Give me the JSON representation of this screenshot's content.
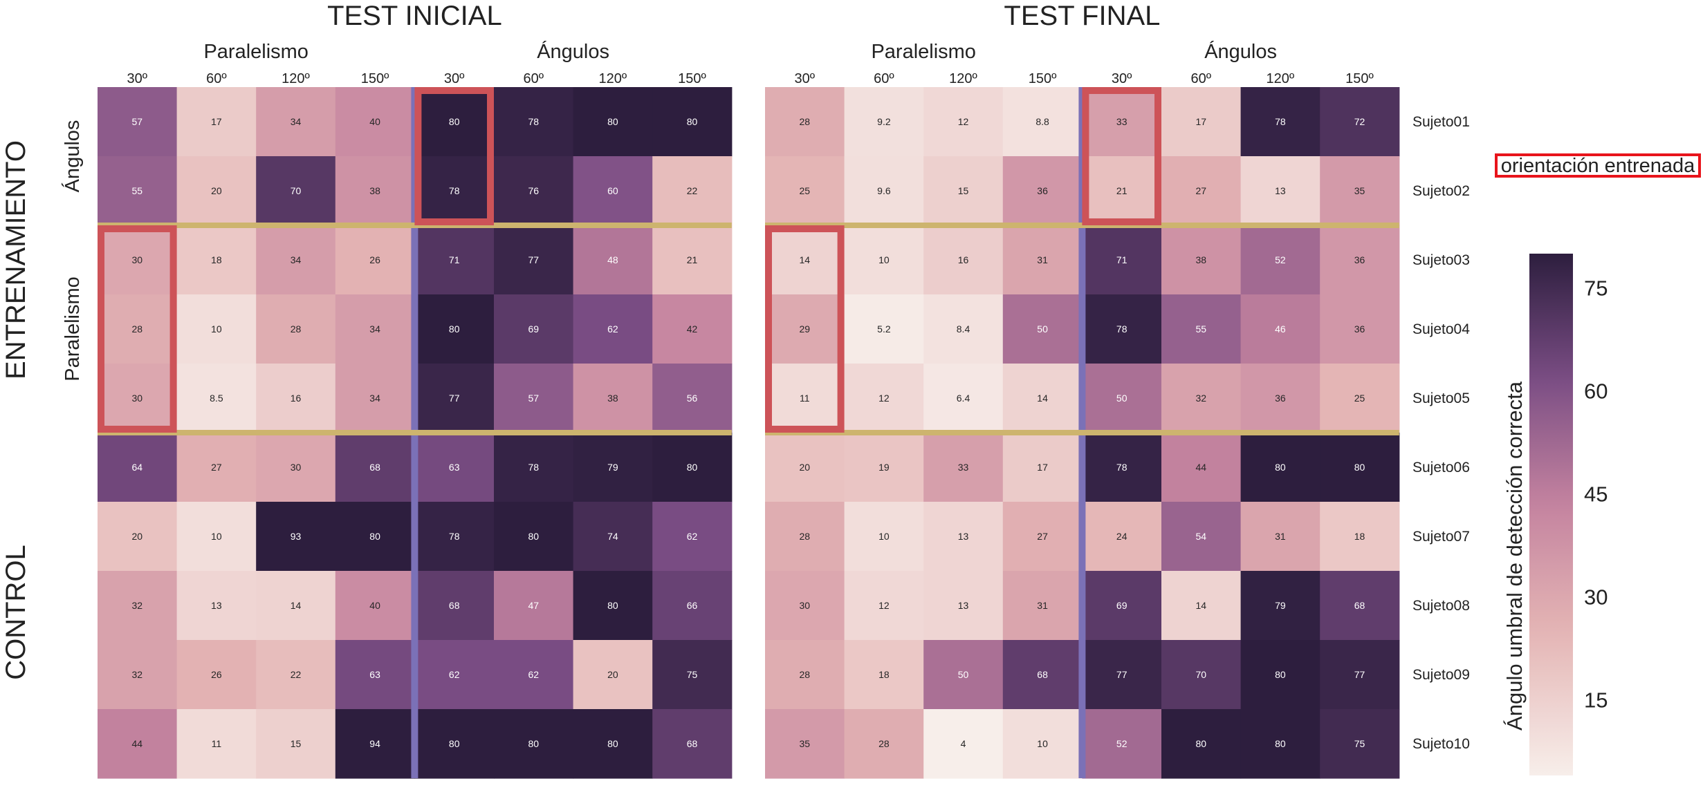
{
  "chart_data": {
    "type": "heatmap",
    "panels": [
      {
        "title": "TEST INICIAL",
        "groups": [
          {
            "label": "Paralelismo",
            "columns": [
              "30º",
              "60º",
              "120º",
              "150º"
            ]
          },
          {
            "label": "Ángulos",
            "columns": [
              "30º",
              "60º",
              "120º",
              "150º"
            ]
          }
        ],
        "values": [
          [
            57,
            17,
            34,
            40,
            80,
            78,
            80,
            80
          ],
          [
            55,
            20,
            70,
            38,
            78,
            76,
            60,
            22
          ],
          [
            30,
            18,
            34,
            26,
            71,
            77,
            48,
            21
          ],
          [
            28,
            10,
            28,
            34,
            80,
            69,
            62,
            42
          ],
          [
            30,
            8.5,
            16,
            34,
            77,
            57,
            38,
            56
          ],
          [
            64,
            27,
            30,
            68,
            63,
            78,
            79,
            80
          ],
          [
            20,
            10,
            93,
            80,
            78,
            80,
            74,
            62
          ],
          [
            32,
            13,
            14,
            40,
            68,
            47,
            80,
            66
          ],
          [
            32,
            26,
            22,
            63,
            62,
            62,
            20,
            75
          ],
          [
            44,
            11,
            15,
            94,
            80,
            80,
            80,
            68
          ]
        ]
      },
      {
        "title": "TEST FINAL",
        "groups": [
          {
            "label": "Paralelismo",
            "columns": [
              "30º",
              "60º",
              "120º",
              "150º"
            ]
          },
          {
            "label": "Ángulos",
            "columns": [
              "30º",
              "60º",
              "120º",
              "150º"
            ]
          }
        ],
        "values": [
          [
            28,
            9.2,
            12,
            8.8,
            33,
            17,
            78,
            72
          ],
          [
            25,
            9.6,
            15,
            36,
            21,
            27,
            13,
            35
          ],
          [
            14,
            10,
            16,
            31,
            71,
            38,
            52,
            36
          ],
          [
            29,
            5.2,
            8.4,
            50,
            78,
            55,
            46,
            36
          ],
          [
            11,
            12,
            6.4,
            14,
            50,
            32,
            36,
            25
          ],
          [
            20,
            19,
            33,
            17,
            78,
            44,
            80,
            80
          ],
          [
            28,
            10,
            13,
            27,
            24,
            54,
            31,
            18
          ],
          [
            30,
            12,
            13,
            31,
            69,
            14,
            79,
            68
          ],
          [
            28,
            18,
            50,
            68,
            77,
            70,
            80,
            77
          ],
          [
            35,
            28,
            4,
            10,
            52,
            80,
            80,
            75
          ]
        ]
      }
    ],
    "subjects": [
      "Sujeto01",
      "Sujeto02",
      "Sujeto03",
      "Sujeto04",
      "Sujeto05",
      "Sujeto06",
      "Sujeto07",
      "Sujeto08",
      "Sujeto09",
      "Sujeto10"
    ],
    "row_groups": [
      {
        "label": "ENTRENAMIENTO",
        "subgroups": [
          "Ángulos",
          "Paralelismo"
        ]
      },
      {
        "label": "CONTROL"
      }
    ],
    "highlights": [
      {
        "panel": 0,
        "col": 4,
        "rows": [
          0,
          1
        ]
      },
      {
        "panel": 0,
        "col": 0,
        "rows": [
          2,
          4
        ]
      },
      {
        "panel": 1,
        "col": 4,
        "rows": [
          0,
          1
        ]
      },
      {
        "panel": 1,
        "col": 0,
        "rows": [
          2,
          4
        ]
      }
    ],
    "highlight_legend": "orientación entrenada",
    "colorbar": {
      "label": "Ángulo umbral de detección correcta",
      "ticks": [
        15,
        30,
        45,
        60,
        75
      ],
      "vmin": 4,
      "vmax": 80
    },
    "colors": {
      "scale_low": "#f7eeea",
      "scale_mid1": "#e4b4b4",
      "scale_mid2": "#c4839f",
      "scale_mid3": "#7a4d84",
      "scale_high": "#2d1e3e",
      "highlight": "#cd5358",
      "group_separator": "#cdb46e",
      "column_separator": "#7b71b7",
      "legend_box": "#e8141b"
    }
  }
}
